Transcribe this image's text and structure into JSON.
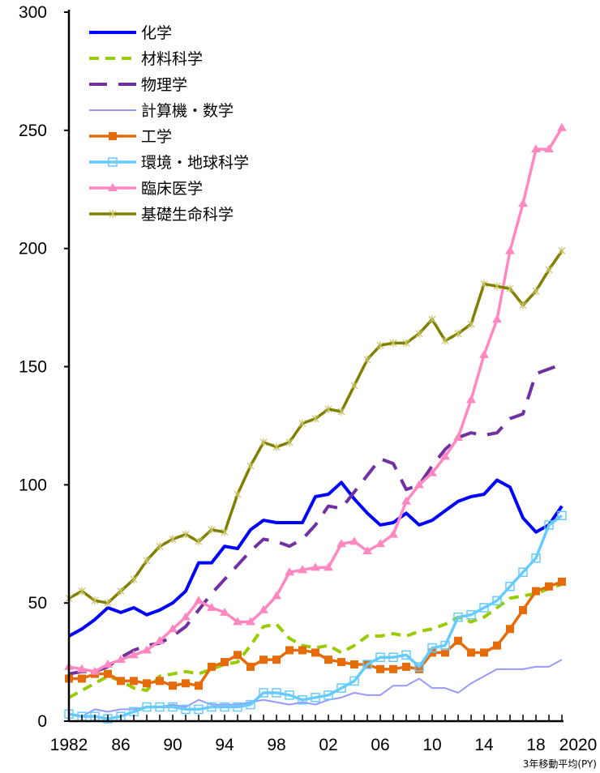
{
  "chart_data": {
    "type": "line",
    "xlabel": "",
    "ylabel": "",
    "note": "3年移動平均(PY)",
    "ylim": [
      0,
      300
    ],
    "xlim": [
      1982,
      2020
    ],
    "yticks": [
      "0",
      "50",
      "100",
      "150",
      "200",
      "250",
      "300"
    ],
    "xticks": [
      {
        "year": 1982,
        "label": "1982"
      },
      {
        "year": 1986,
        "label": "86"
      },
      {
        "year": 1990,
        "label": "90"
      },
      {
        "year": 1994,
        "label": "94"
      },
      {
        "year": 1998,
        "label": "98"
      },
      {
        "year": 2002,
        "label": "02"
      },
      {
        "year": 2006,
        "label": "06"
      },
      {
        "year": 2010,
        "label": "10"
      },
      {
        "year": 2014,
        "label": "14"
      },
      {
        "year": 2018,
        "label": "18"
      },
      {
        "year": 2020,
        "label": "2020"
      }
    ],
    "grid": false,
    "legend": "top-left",
    "x": [
      1982,
      1983,
      1984,
      1985,
      1986,
      1987,
      1988,
      1989,
      1990,
      1991,
      1992,
      1993,
      1994,
      1995,
      1996,
      1997,
      1998,
      1999,
      2000,
      2001,
      2002,
      2003,
      2004,
      2005,
      2006,
      2007,
      2008,
      2009,
      2010,
      2011,
      2012,
      2013,
      2014,
      2015,
      2016,
      2017,
      2018,
      2019,
      2020
    ],
    "series": [
      {
        "name": "化学",
        "color": "#0000ff",
        "style": "solid",
        "marker": "none",
        "values": [
          36,
          39,
          43,
          48,
          46,
          48,
          45,
          47,
          50,
          55,
          67,
          67,
          74,
          73,
          81,
          85,
          84,
          84,
          84,
          95,
          96,
          101,
          94,
          88,
          83,
          84,
          88,
          83,
          85,
          89,
          93,
          95,
          96,
          102,
          99,
          86,
          80,
          83,
          91
        ]
      },
      {
        "name": "材料科学",
        "color": "#99cc00",
        "style": "dashed",
        "marker": "none",
        "values": [
          10,
          13,
          16,
          19,
          17,
          14,
          13,
          19,
          20,
          21,
          20,
          22,
          24,
          25,
          32,
          40,
          41,
          35,
          32,
          31,
          32,
          29,
          32,
          36,
          36,
          37,
          36,
          38,
          39,
          41,
          44,
          42,
          44,
          48,
          52,
          53,
          54,
          56,
          58
        ]
      },
      {
        "name": "物理学",
        "color": "#7030a0",
        "style": "longdash",
        "marker": "none",
        "values": [
          20,
          21,
          21,
          23,
          27,
          30,
          32,
          33,
          36,
          40,
          47,
          54,
          60,
          66,
          72,
          77,
          76,
          74,
          77,
          83,
          91,
          90,
          97,
          104,
          111,
          109,
          98,
          100,
          108,
          115,
          120,
          122,
          121,
          122,
          128,
          130,
          147,
          149,
          151
        ]
      },
      {
        "name": "計算機・数学",
        "color": "#9999ff",
        "style": "thin",
        "marker": "none",
        "values": [
          3,
          2,
          5,
          4,
          5,
          5,
          6,
          6,
          7,
          6,
          9,
          7,
          7,
          7,
          8,
          9,
          8,
          7,
          8,
          7,
          9,
          10,
          12,
          11,
          11,
          15,
          15,
          18,
          14,
          14,
          12,
          16,
          19,
          22,
          22,
          22,
          23,
          23,
          26
        ]
      },
      {
        "name": "工学",
        "color": "#e46c0a",
        "style": "solid",
        "marker": "square",
        "values": [
          18,
          18,
          20,
          20,
          17,
          17,
          16,
          17,
          15,
          16,
          15,
          23,
          25,
          28,
          23,
          26,
          26,
          30,
          30,
          29,
          26,
          25,
          24,
          24,
          22,
          22,
          23,
          22,
          29,
          29,
          34,
          29,
          29,
          32,
          39,
          47,
          55,
          57,
          59
        ]
      },
      {
        "name": "環境・地球科学",
        "color": "#66ccff",
        "style": "solid",
        "marker": "hollow-square",
        "values": [
          3,
          2,
          2,
          1,
          2,
          4,
          6,
          6,
          6,
          5,
          5,
          6,
          6,
          6,
          7,
          12,
          12,
          11,
          9,
          10,
          11,
          14,
          17,
          24,
          27,
          27,
          28,
          23,
          31,
          32,
          44,
          45,
          48,
          51,
          57,
          63,
          69,
          83,
          87
        ]
      },
      {
        "name": "臨床医学",
        "color": "#ff88c0",
        "style": "solid",
        "marker": "triangle",
        "values": [
          23,
          22,
          21,
          24,
          26,
          28,
          30,
          34,
          39,
          44,
          51,
          48,
          46,
          42,
          42,
          47,
          53,
          63,
          64,
          65,
          65,
          75,
          76,
          72,
          75,
          79,
          93,
          100,
          105,
          112,
          120,
          136,
          155,
          170,
          199,
          219,
          242,
          242,
          251
        ]
      },
      {
        "name": "基礎生命科学",
        "color": "#808000",
        "style": "solid",
        "marker": "star",
        "values": [
          52,
          55,
          51,
          50,
          55,
          60,
          68,
          74,
          77,
          79,
          76,
          81,
          80,
          96,
          108,
          118,
          116,
          118,
          126,
          128,
          132,
          131,
          142,
          153,
          159,
          160,
          160,
          164,
          170,
          161,
          164,
          168,
          185,
          184,
          183,
          176,
          182,
          191,
          199
        ]
      }
    ]
  }
}
